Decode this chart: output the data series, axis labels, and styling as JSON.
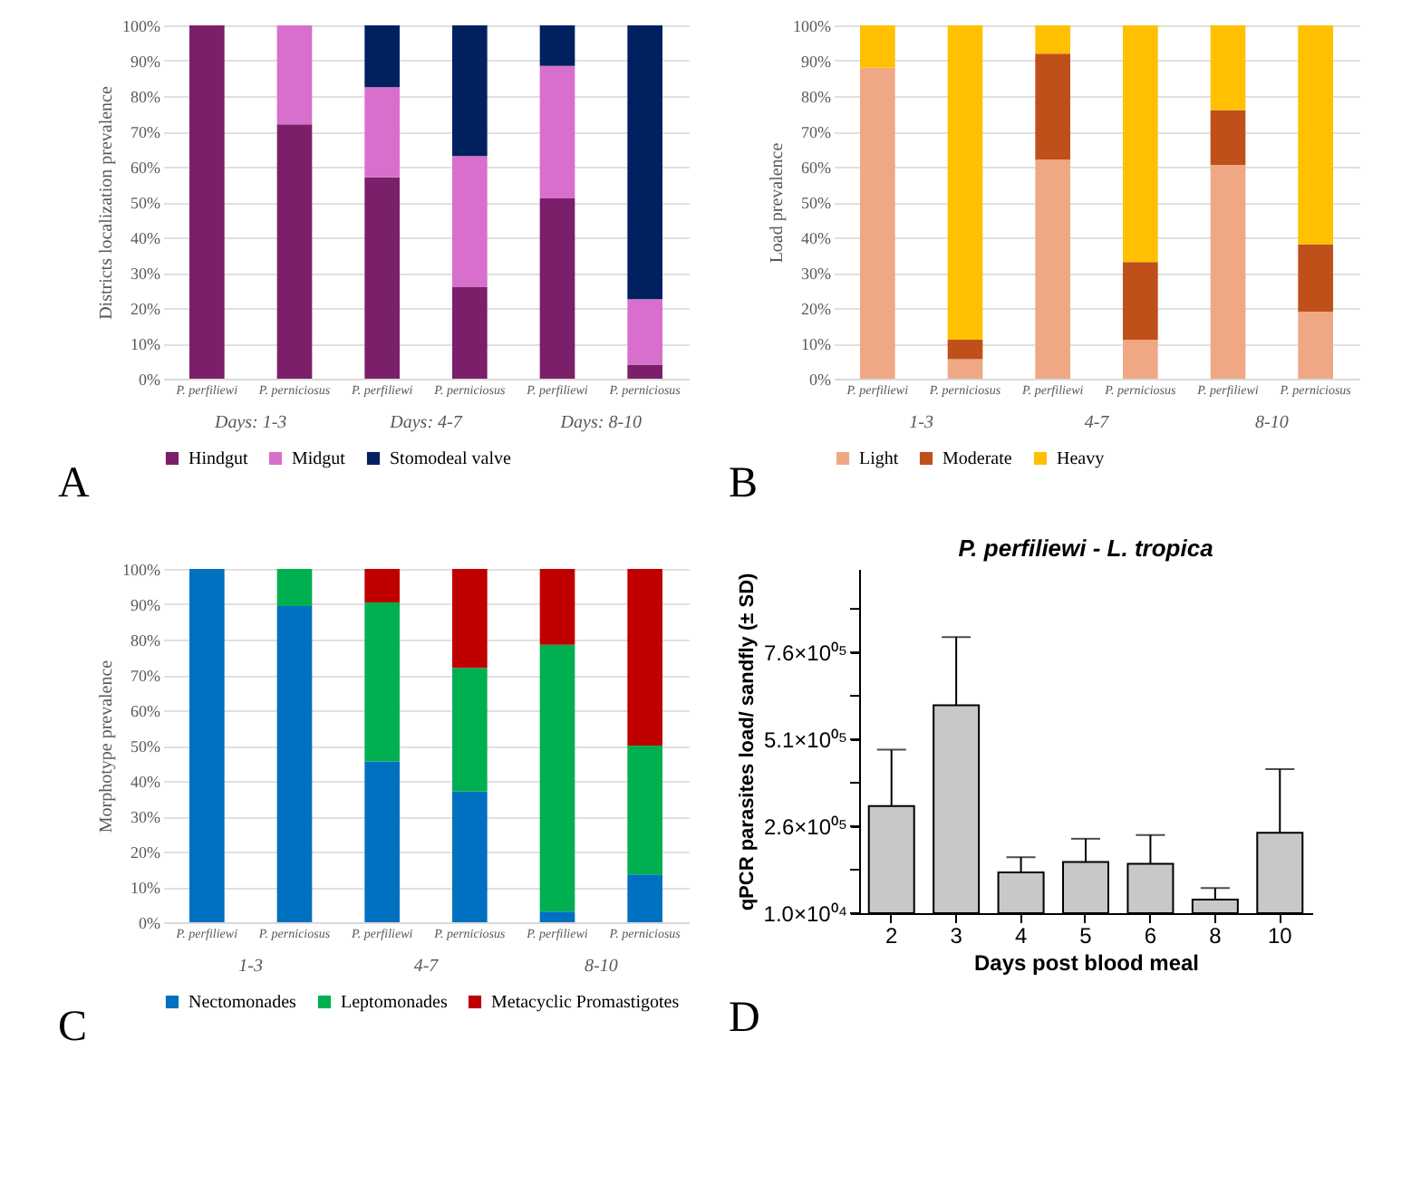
{
  "chart_data": [
    {
      "type": "bar",
      "stacked": true,
      "ylabel": "Districts localization prevalence",
      "categories": [
        "P. perfiliewi",
        "P. perniciosus",
        "P. perfiliewi",
        "P. perniciosus",
        "P. perfiliewi",
        "P. perniciosus"
      ],
      "series": [
        {
          "name": "Hindgut",
          "color": "#7b1f6a",
          "values": [
            100,
            72,
            57,
            26,
            51,
            4
          ]
        },
        {
          "name": "Midgut",
          "color": "#d86fcc",
          "values": [
            0,
            28,
            25.5,
            37,
            37.5,
            18.5
          ]
        },
        {
          "name": "Stomodeal valve",
          "color": "#002060",
          "values": [
            0,
            0,
            17.5,
            37,
            11.5,
            77.5
          ]
        }
      ],
      "ylim": [
        0,
        100
      ],
      "yticks": [
        {
          "value": 0,
          "label": "0%"
        },
        {
          "value": 10,
          "label": "10%"
        },
        {
          "value": 20,
          "label": "20%"
        },
        {
          "value": 30,
          "label": "30%"
        },
        {
          "value": 40,
          "label": "40%"
        },
        {
          "value": 50,
          "label": "50%"
        },
        {
          "value": 60,
          "label": "60%"
        },
        {
          "value": 70,
          "label": "70%"
        },
        {
          "value": 80,
          "label": "80%"
        },
        {
          "value": 90,
          "label": "90%"
        },
        {
          "value": 100,
          "label": "100%"
        }
      ],
      "grid": "y",
      "legend": "bottom",
      "annotations": [
        "Days: 1-3",
        "Days: 4-7",
        "Days: 8-10",
        "A"
      ]
    },
    {
      "type": "bar",
      "stacked": true,
      "ylabel": "Load prevalence",
      "categories": [
        "P. perfiliewi",
        "P. perniciosus",
        "P. perfiliewi",
        "P. perniciosus",
        "P. perfiliewi",
        "P. perniciosus"
      ],
      "series": [
        {
          "name": "Light",
          "color": "#f0a884",
          "values": [
            88,
            5.5,
            62,
            11,
            60.5,
            19
          ]
        },
        {
          "name": "Moderate",
          "color": "#c0501a",
          "values": [
            0,
            5.5,
            30,
            22,
            15.5,
            19
          ]
        },
        {
          "name": "Heavy",
          "color": "#ffc000",
          "values": [
            12,
            89,
            8,
            67,
            24,
            62
          ]
        }
      ],
      "ylim": [
        0,
        100
      ],
      "yticks": [
        {
          "value": 0,
          "label": "0%"
        },
        {
          "value": 10,
          "label": "10%"
        },
        {
          "value": 20,
          "label": "20%"
        },
        {
          "value": 30,
          "label": "30%"
        },
        {
          "value": 40,
          "label": "40%"
        },
        {
          "value": 50,
          "label": "50%"
        },
        {
          "value": 60,
          "label": "60%"
        },
        {
          "value": 70,
          "label": "70%"
        },
        {
          "value": 80,
          "label": "80%"
        },
        {
          "value": 90,
          "label": "90%"
        },
        {
          "value": 100,
          "label": "100%"
        }
      ],
      "grid": "y",
      "legend": "bottom",
      "annotations": [
        "1-3",
        "4-7",
        "8-10",
        "B"
      ]
    },
    {
      "type": "bar",
      "stacked": true,
      "ylabel": "Morphotype prevalence",
      "categories": [
        "P. perfiliewi",
        "P. perniciosus",
        "P. perfiliewi",
        "P. perniciosus",
        "P. perfiliewi",
        "P. perniciosus"
      ],
      "series": [
        {
          "name": "Nectomonades",
          "color": "#0070c0",
          "values": [
            100,
            89.5,
            45.5,
            37,
            3,
            13.5
          ]
        },
        {
          "name": "Leptomonades",
          "color": "#00b050",
          "values": [
            0,
            10.5,
            45,
            35,
            75.5,
            36.5
          ]
        },
        {
          "name": "Metacyclic Promastigotes",
          "color": "#c00000",
          "values": [
            0,
            0,
            9.5,
            28,
            21.5,
            50
          ]
        }
      ],
      "ylim": [
        0,
        100
      ],
      "yticks": [
        {
          "value": 0,
          "label": "0%"
        },
        {
          "value": 10,
          "label": "10%"
        },
        {
          "value": 20,
          "label": "20%"
        },
        {
          "value": 30,
          "label": "30%"
        },
        {
          "value": 40,
          "label": "40%"
        },
        {
          "value": 50,
          "label": "50%"
        },
        {
          "value": 60,
          "label": "60%"
        },
        {
          "value": 70,
          "label": "70%"
        },
        {
          "value": 80,
          "label": "80%"
        },
        {
          "value": 90,
          "label": "90%"
        },
        {
          "value": 100,
          "label": "100%"
        }
      ],
      "grid": "y",
      "legend": "bottom",
      "annotations": [
        "1-3",
        "4-7",
        "8-10",
        "C"
      ]
    },
    {
      "type": "bar",
      "title": "P. perfiliewi - L. tropica",
      "xlabel": "Days post blood meal",
      "ylabel": "qPCR parasites load/ sandfly (± SD)",
      "categories": [
        "2",
        "3",
        "4",
        "5",
        "6",
        "8",
        "10"
      ],
      "values": [
        318000,
        608000,
        127000,
        157000,
        152000,
        49000,
        241000
      ],
      "color": "#c8c8c8",
      "errors": [
        [
          318000,
          480000
        ],
        [
          608000,
          804000
        ],
        [
          127000,
          171000
        ],
        [
          157000,
          224000
        ],
        [
          152000,
          235000
        ],
        [
          49000,
          82000
        ],
        [
          241000,
          424000
        ]
      ],
      "ylim": [
        10000,
        1000000
      ],
      "yticks": [
        {
          "value": 10000,
          "label": "1.0×10⁰⁴"
        },
        {
          "value": 135000,
          "label": null
        },
        {
          "value": 260000,
          "label": "2.6×10⁰⁵"
        },
        {
          "value": 385000,
          "label": null
        },
        {
          "value": 510000,
          "label": "5.1×10⁰⁵"
        },
        {
          "value": 635000,
          "label": null
        },
        {
          "value": 760000,
          "label": "7.6×10⁰⁵"
        },
        {
          "value": 885000,
          "label": null
        }
      ],
      "grid": false,
      "annotations": [
        "D"
      ]
    }
  ]
}
